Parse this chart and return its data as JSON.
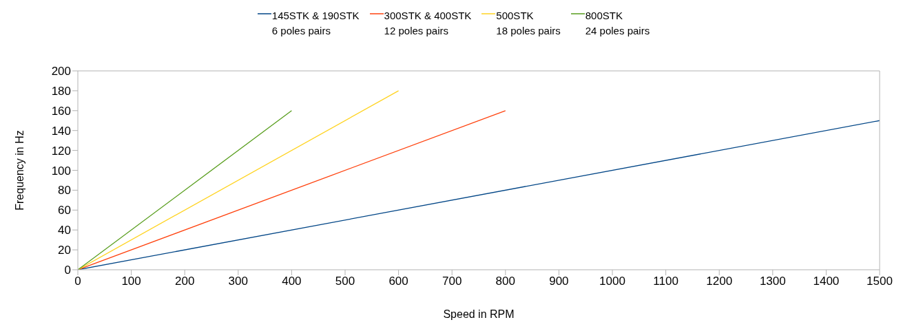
{
  "chart_data": {
    "type": "line",
    "xlabel": "Speed in RPM",
    "ylabel": "Frequency in Hz",
    "xlim": [
      0,
      1500
    ],
    "xticks": [
      0,
      100,
      200,
      300,
      400,
      500,
      600,
      700,
      800,
      900,
      1000,
      1100,
      1200,
      1300,
      1400,
      1500
    ],
    "ylim": [
      0,
      200
    ],
    "yticks": [
      0,
      20,
      40,
      60,
      80,
      100,
      120,
      140,
      160,
      180,
      200
    ],
    "grid": false,
    "legend": "top",
    "marker": "none",
    "line_style": "solid",
    "series": [
      {
        "name": "145STK & 190STK\n6 poles pairs",
        "color": "#004586",
        "x": [
          0,
          1500
        ],
        "values": [
          0,
          150
        ]
      },
      {
        "name": "300STK & 400STK\n12 poles pairs",
        "color": "#ff420e",
        "x": [
          0,
          800
        ],
        "values": [
          0,
          160
        ]
      },
      {
        "name": "500STK\n18 poles pairs",
        "color": "#ffd320",
        "x": [
          0,
          600
        ],
        "values": [
          0,
          180
        ]
      },
      {
        "name": "800STK\n24 poles pairs",
        "color": "#579d1c",
        "x": [
          0,
          400
        ],
        "values": [
          0,
          160
        ]
      }
    ]
  }
}
